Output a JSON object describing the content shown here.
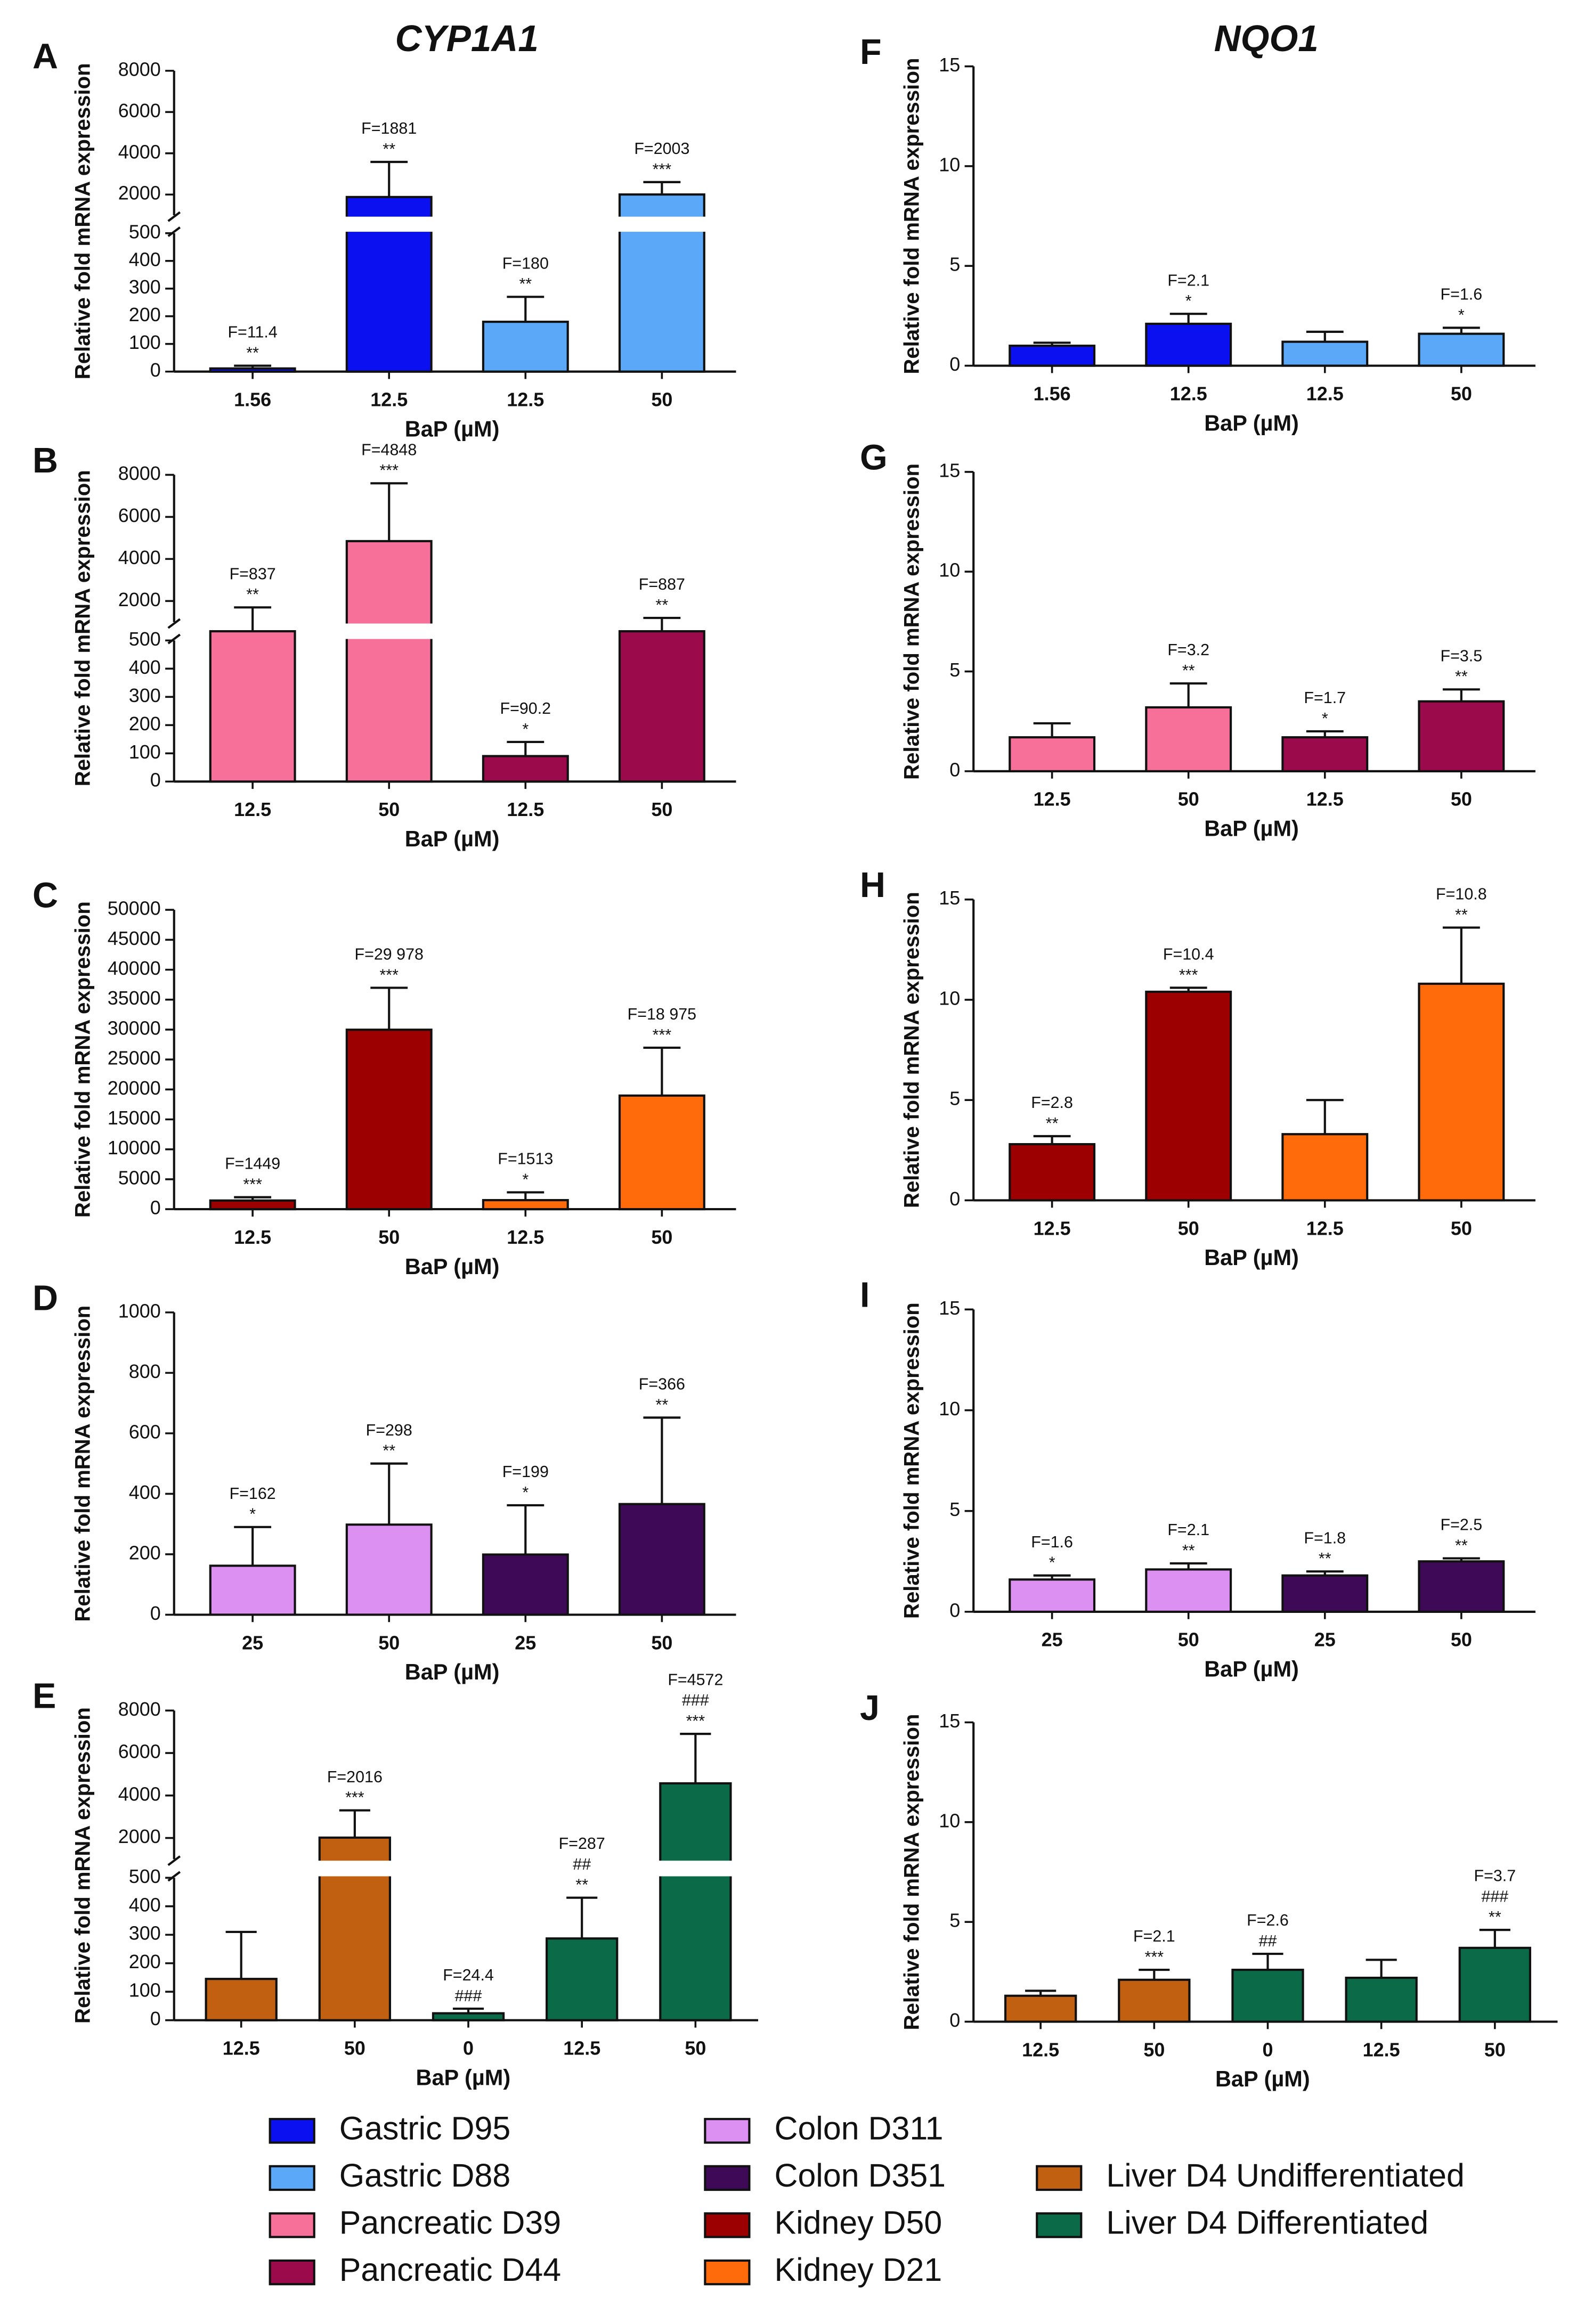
{
  "chart_data": [
    {
      "type": "bar",
      "label": "A",
      "title": "CYP1A1",
      "ylabel": "Relative fold mRNA expression",
      "xlabel": "BaP (µM)",
      "categories": [
        "1.56",
        "12.5",
        "12.5",
        "50"
      ],
      "values": [
        11.4,
        1881,
        180,
        2003
      ],
      "errors": [
        10,
        1700,
        90,
        600
      ],
      "value_labels": [
        "F=11.4",
        "F=1881",
        "F=180",
        "F=2003"
      ],
      "stars": [
        "**",
        "**",
        "**",
        "***"
      ],
      "colors": [
        "#0a10f0",
        "#0a10f0",
        "#5aa8f7",
        "#5aa8f7"
      ],
      "ylim": [
        0,
        8000
      ],
      "ybreak": [
        500,
        1000
      ],
      "yticks": [
        0,
        100,
        200,
        300,
        400,
        500,
        2000,
        4000,
        6000,
        8000
      ]
    },
    {
      "type": "bar",
      "label": "B",
      "ylabel": "Relative fold mRNA expression",
      "xlabel": "BaP (µM)",
      "categories": [
        "12.5",
        "50",
        "12.5",
        "50"
      ],
      "values": [
        837,
        4848,
        90.2,
        887
      ],
      "errors": [
        860,
        2750,
        50,
        310
      ],
      "value_labels": [
        "F=837",
        "F=4848",
        "F=90.2",
        "F=887"
      ],
      "stars": [
        "**",
        "***",
        "*",
        "**"
      ],
      "colors": [
        "#f7709a",
        "#f7709a",
        "#9b0a4b",
        "#9b0a4b"
      ],
      "ylim": [
        0,
        8000
      ],
      "ybreak": [
        500,
        1000
      ],
      "yticks": [
        0,
        100,
        200,
        300,
        400,
        500,
        2000,
        4000,
        6000,
        8000
      ]
    },
    {
      "type": "bar",
      "label": "C",
      "ylabel": "Relative fold mRNA expression",
      "xlabel": "BaP (µM)",
      "categories": [
        "12.5",
        "50",
        "12.5",
        "50"
      ],
      "values": [
        1449,
        29978,
        1513,
        18975
      ],
      "errors": [
        550,
        7000,
        1300,
        8000
      ],
      "value_labels": [
        "F=1449",
        "F=29 978",
        "F=1513",
        "F=18 975"
      ],
      "stars": [
        "***",
        "***",
        "*",
        "***"
      ],
      "colors": [
        "#9c0000",
        "#9c0000",
        "#ff6a0a",
        "#ff6a0a"
      ],
      "ylim": [
        0,
        50000
      ],
      "yticks": [
        0,
        5000,
        10000,
        15000,
        20000,
        25000,
        30000,
        35000,
        40000,
        45000,
        50000
      ]
    },
    {
      "type": "bar",
      "label": "D",
      "ylabel": "Relative fold mRNA expression",
      "xlabel": "BaP (µM)",
      "categories": [
        "25",
        "50",
        "25",
        "50"
      ],
      "values": [
        162,
        298,
        199,
        366
      ],
      "errors": [
        128,
        202,
        163,
        286
      ],
      "value_labels": [
        "F=162",
        "F=298",
        "F=199",
        "F=366"
      ],
      "stars": [
        "*",
        "**",
        "*",
        "**"
      ],
      "colors": [
        "#dc90f2",
        "#dc90f2",
        "#3e0a57",
        "#3e0a57"
      ],
      "ylim": [
        0,
        1000
      ],
      "yticks": [
        0,
        200,
        400,
        600,
        800,
        1000
      ]
    },
    {
      "type": "bar",
      "label": "E",
      "ylabel": "Relative fold mRNA expression",
      "xlabel": "BaP (µM)",
      "categories": [
        "12.5",
        "50",
        "0",
        "12.5",
        "50"
      ],
      "values": [
        145,
        2016,
        24.4,
        287,
        4572
      ],
      "errors": [
        165,
        1284,
        16,
        143,
        2330
      ],
      "value_labels": [
        null,
        "F=2016",
        "F=24.4",
        "F=287",
        "F=4572"
      ],
      "stars": [
        null,
        "***",
        null,
        "**",
        "***"
      ],
      "hashes": [
        null,
        null,
        "###",
        "##",
        "###"
      ],
      "colors": [
        "#c06010",
        "#c06010",
        "#0b6b48",
        "#0b6b48",
        "#0b6b48"
      ],
      "ylim": [
        0,
        8000
      ],
      "ybreak": [
        500,
        1000
      ],
      "yticks": [
        0,
        100,
        200,
        300,
        400,
        500,
        2000,
        4000,
        6000,
        8000
      ]
    },
    {
      "type": "bar",
      "label": "F",
      "title": "NQO1",
      "ylabel": "Relative fold mRNA expression",
      "xlabel": "BaP (µM)",
      "categories": [
        "1.56",
        "12.5",
        "12.5",
        "50"
      ],
      "values": [
        1.0,
        2.1,
        1.2,
        1.6
      ],
      "errors": [
        0.15,
        0.5,
        0.5,
        0.3
      ],
      "value_labels": [
        null,
        "F=2.1",
        null,
        "F=1.6"
      ],
      "stars": [
        null,
        "*",
        null,
        "*"
      ],
      "colors": [
        "#0a10f0",
        "#0a10f0",
        "#5aa8f7",
        "#5aa8f7"
      ],
      "ylim": [
        0,
        15
      ],
      "yticks": [
        0,
        5,
        10,
        15
      ]
    },
    {
      "type": "bar",
      "label": "G",
      "ylabel": "Relative fold mRNA expression",
      "xlabel": "BaP (µM)",
      "categories": [
        "12.5",
        "50",
        "12.5",
        "50"
      ],
      "values": [
        1.7,
        3.2,
        1.7,
        3.5
      ],
      "errors": [
        0.7,
        1.2,
        0.3,
        0.6
      ],
      "value_labels": [
        null,
        "F=3.2",
        "F=1.7",
        "F=3.5"
      ],
      "stars": [
        null,
        "**",
        "*",
        "**"
      ],
      "colors": [
        "#f7709a",
        "#f7709a",
        "#9b0a4b",
        "#9b0a4b"
      ],
      "ylim": [
        0,
        15
      ],
      "yticks": [
        0,
        5,
        10,
        15
      ]
    },
    {
      "type": "bar",
      "label": "H",
      "ylabel": "Relative fold mRNA expression",
      "xlabel": "BaP (µM)",
      "categories": [
        "12.5",
        "50",
        "12.5",
        "50"
      ],
      "values": [
        2.8,
        10.4,
        3.3,
        10.8
      ],
      "errors": [
        0.4,
        0.2,
        1.7,
        2.8
      ],
      "value_labels": [
        "F=2.8",
        "F=10.4",
        null,
        "F=10.8"
      ],
      "stars": [
        "**",
        "***",
        null,
        "**"
      ],
      "colors": [
        "#9c0000",
        "#9c0000",
        "#ff6a0a",
        "#ff6a0a"
      ],
      "ylim": [
        0,
        15
      ],
      "yticks": [
        0,
        5,
        10,
        15
      ]
    },
    {
      "type": "bar",
      "label": "I",
      "ylabel": "Relative fold mRNA expression",
      "xlabel": "BaP (µM)",
      "categories": [
        "25",
        "50",
        "25",
        "50"
      ],
      "values": [
        1.6,
        2.1,
        1.8,
        2.5
      ],
      "errors": [
        0.2,
        0.3,
        0.2,
        0.15
      ],
      "value_labels": [
        "F=1.6",
        "F=2.1",
        "F=1.8",
        "F=2.5"
      ],
      "stars": [
        "*",
        "**",
        "**",
        "**"
      ],
      "colors": [
        "#dc90f2",
        "#dc90f2",
        "#3e0a57",
        "#3e0a57"
      ],
      "ylim": [
        0,
        15
      ],
      "yticks": [
        0,
        5,
        10,
        15
      ]
    },
    {
      "type": "bar",
      "label": "J",
      "ylabel": "Relative fold mRNA expression",
      "xlabel": "BaP (µM)",
      "categories": [
        "12.5",
        "50",
        "0",
        "12.5",
        "50"
      ],
      "values": [
        1.3,
        2.1,
        2.6,
        2.2,
        3.7
      ],
      "errors": [
        0.25,
        0.5,
        0.8,
        0.9,
        0.9
      ],
      "value_labels": [
        null,
        "F=2.1",
        "F=2.6",
        null,
        "F=3.7"
      ],
      "stars": [
        null,
        "***",
        null,
        null,
        "**"
      ],
      "hashes": [
        null,
        null,
        "##",
        null,
        "###"
      ],
      "colors": [
        "#c06010",
        "#c06010",
        "#0b6b48",
        "#0b6b48",
        "#0b6b48"
      ],
      "ylim": [
        0,
        15
      ],
      "yticks": [
        0,
        5,
        10,
        15
      ]
    }
  ],
  "legend": [
    {
      "name": "Gastric D95",
      "color": "#0a10f0"
    },
    {
      "name": "Gastric D88",
      "color": "#5aa8f7"
    },
    {
      "name": "Pancreatic D39",
      "color": "#f7709a"
    },
    {
      "name": "Pancreatic D44",
      "color": "#9b0a4b"
    },
    {
      "name": "Colon D311",
      "color": "#dc90f2"
    },
    {
      "name": "Colon D351",
      "color": "#3e0a57"
    },
    {
      "name": "Kidney D50",
      "color": "#9c0000"
    },
    {
      "name": "Kidney D21",
      "color": "#ff6a0a"
    },
    {
      "name": "Liver D4 Undifferentiated",
      "color": "#c06010"
    },
    {
      "name": "Liver D4 Differentiated",
      "color": "#0b6b48"
    }
  ]
}
